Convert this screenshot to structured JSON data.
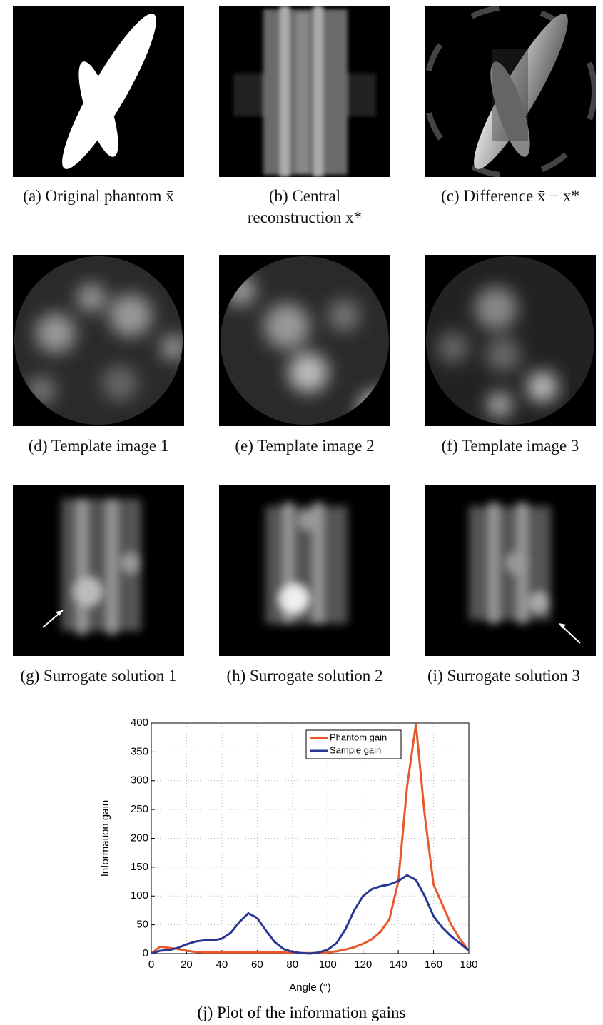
{
  "panels": [
    {
      "caption": "(a) Original phantom x̄"
    },
    {
      "caption": "(b) Central reconstruction x*"
    },
    {
      "caption": "(c) Difference x̄ − x*"
    },
    {
      "caption": "(d) Template image 1"
    },
    {
      "caption": "(e) Template image 2"
    },
    {
      "caption": "(f) Template image 3"
    },
    {
      "caption": "(g) Surrogate solution 1"
    },
    {
      "caption": "(h) Surrogate solution 2"
    },
    {
      "caption": "(i) Surrogate solution 3"
    }
  ],
  "chart_data": {
    "type": "line",
    "caption": "(j) Plot of the information gains",
    "x_label": "Angle (°)",
    "y_label": "Information gain",
    "x": [
      0,
      5,
      10,
      15,
      20,
      25,
      30,
      35,
      40,
      45,
      50,
      55,
      60,
      65,
      70,
      75,
      80,
      85,
      90,
      95,
      100,
      105,
      110,
      115,
      120,
      125,
      130,
      135,
      140,
      145,
      150,
      155,
      160,
      165,
      170,
      175,
      180
    ],
    "series": [
      {
        "name": "Phantom gain",
        "color": "#e8582b",
        "values": [
          0,
          12,
          10,
          8,
          5,
          3,
          2,
          2,
          2,
          2,
          2,
          2,
          2,
          2,
          2,
          2,
          1,
          1,
          1,
          1,
          2,
          4,
          7,
          11,
          17,
          25,
          38,
          60,
          125,
          290,
          398,
          240,
          120,
          85,
          50,
          25,
          5
        ]
      },
      {
        "name": "Sample gain",
        "color": "#2a3795",
        "values": [
          0,
          5,
          6,
          10,
          16,
          21,
          23,
          23,
          26,
          36,
          55,
          70,
          62,
          40,
          20,
          8,
          3,
          1,
          0,
          2,
          7,
          18,
          42,
          75,
          100,
          112,
          117,
          120,
          126,
          136,
          128,
          100,
          65,
          45,
          30,
          18,
          5
        ]
      }
    ],
    "xlim": [
      0,
      180
    ],
    "xticks": [
      0,
      20,
      40,
      60,
      80,
      100,
      120,
      140,
      160,
      180
    ],
    "ylim": [
      0,
      400
    ],
    "yticks": [
      0,
      50,
      100,
      150,
      200,
      250,
      300,
      350,
      400
    ],
    "grid": true,
    "legend": "top-right"
  }
}
